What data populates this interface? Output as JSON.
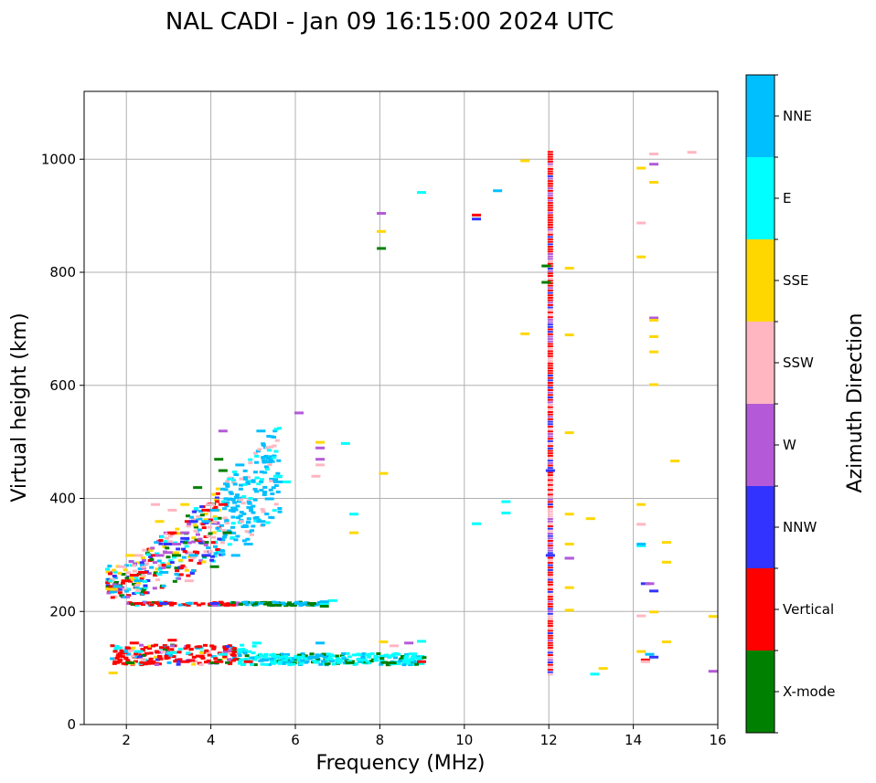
{
  "chart_data": {
    "type": "scatter",
    "title": "NAL CADI - Jan 09 16:15:00 2024 UTC",
    "xlabel": "Frequency (MHz)",
    "ylabel": "Virtual height (km)",
    "xlim": [
      1,
      16
    ],
    "ylim": [
      0,
      1120
    ],
    "xticks": [
      2,
      4,
      6,
      8,
      10,
      12,
      14,
      16
    ],
    "yticks": [
      0,
      200,
      400,
      600,
      800,
      1000
    ],
    "grid": true,
    "colorbar": {
      "label": "Azimuth Direction",
      "categories": [
        {
          "name": "X-mode",
          "color": "#008000"
        },
        {
          "name": "Vertical",
          "color": "#ff0000"
        },
        {
          "name": "NNW",
          "color": "#3333ff"
        },
        {
          "name": "W",
          "color": "#b45ad8"
        },
        {
          "name": "SSW",
          "color": "#ffb6c1"
        },
        {
          "name": "SSE",
          "color": "#ffd700"
        },
        {
          "name": "E",
          "color": "#00ffff"
        },
        {
          "name": "NNE",
          "color": "#00bfff"
        }
      ]
    },
    "series": [
      {
        "name": "X-mode",
        "points": [
          [
            4.1,
            470
          ],
          [
            4.2,
            450
          ],
          [
            3.6,
            420
          ],
          [
            6.6,
            210
          ],
          [
            6.3,
            215
          ],
          [
            5.8,
            213
          ],
          [
            4.0,
            110
          ],
          [
            7.2,
            110
          ],
          [
            8.2,
            110
          ],
          [
            2.0,
            110
          ],
          [
            11.85,
            812
          ],
          [
            11.85,
            783
          ],
          [
            7.95,
            843
          ],
          [
            4.3,
            340
          ],
          [
            4.0,
            280
          ],
          [
            3.1,
            300
          ]
        ]
      },
      {
        "name": "Vertical",
        "points": [
          [
            1.6,
            245
          ],
          [
            1.9,
            255
          ],
          [
            2.1,
            265
          ],
          [
            2.3,
            270
          ],
          [
            2.6,
            300
          ],
          [
            3.0,
            340
          ],
          [
            3.4,
            360
          ],
          [
            3.8,
            380
          ],
          [
            4.2,
            390
          ],
          [
            2.2,
            215
          ],
          [
            3.0,
            215
          ],
          [
            4.0,
            215
          ],
          [
            1.7,
            112
          ],
          [
            2.5,
            112
          ],
          [
            3.3,
            112
          ],
          [
            4.1,
            112
          ],
          [
            4.8,
            112
          ],
          [
            2.1,
            145
          ],
          [
            3.0,
            150
          ],
          [
            10.2,
            902
          ],
          [
            8.9,
            112
          ],
          [
            14.2,
            115
          ]
        ]
      },
      {
        "name": "NNW",
        "points": [
          [
            2.9,
            320
          ],
          [
            3.3,
            330
          ],
          [
            3.8,
            300
          ],
          [
            3.5,
            360
          ],
          [
            2.8,
            215
          ],
          [
            4.0,
            215
          ],
          [
            10.2,
            895
          ],
          [
            12.4,
            295
          ],
          [
            14.2,
            250
          ],
          [
            14.4,
            237
          ],
          [
            14.4,
            120
          ],
          [
            11.95,
            300
          ],
          [
            11.95,
            450
          ]
        ]
      },
      {
        "name": "W",
        "points": [
          [
            2.7,
            300
          ],
          [
            2.9,
            305
          ],
          [
            3.1,
            320
          ],
          [
            3.3,
            340
          ],
          [
            4.2,
            520
          ],
          [
            6.5,
            490
          ],
          [
            6.5,
            470
          ],
          [
            7.95,
            905
          ],
          [
            8.6,
            145
          ],
          [
            12.4,
            295
          ],
          [
            14.3,
            250
          ],
          [
            14.4,
            992
          ],
          [
            14.4,
            720
          ],
          [
            15.8,
            95
          ],
          [
            6.0,
            552
          ]
        ]
      },
      {
        "name": "SSW",
        "points": [
          [
            1.8,
            280
          ],
          [
            2.2,
            300
          ],
          [
            2.6,
            390
          ],
          [
            3.0,
            380
          ],
          [
            3.4,
            255
          ],
          [
            3.9,
            390
          ],
          [
            6.5,
            460
          ],
          [
            6.4,
            440
          ],
          [
            8.25,
            140
          ],
          [
            14.1,
            888
          ],
          [
            14.1,
            355
          ],
          [
            14.1,
            193
          ],
          [
            14.4,
            1010
          ],
          [
            15.3,
            1013
          ],
          [
            14.2,
            112
          ]
        ]
      },
      {
        "name": "SSE",
        "points": [
          [
            1.6,
            240
          ],
          [
            2.0,
            300
          ],
          [
            2.7,
            360
          ],
          [
            3.3,
            390
          ],
          [
            6.5,
            500
          ],
          [
            7.3,
            340
          ],
          [
            8.0,
            445
          ],
          [
            7.95,
            873
          ],
          [
            11.35,
            998
          ],
          [
            11.35,
            692
          ],
          [
            12.4,
            808
          ],
          [
            12.4,
            690
          ],
          [
            12.4,
            517
          ],
          [
            12.4,
            373
          ],
          [
            12.4,
            320
          ],
          [
            12.4,
            243
          ],
          [
            12.4,
            203
          ],
          [
            12.9,
            365
          ],
          [
            13.2,
            100
          ],
          [
            14.1,
            985
          ],
          [
            14.1,
            828
          ],
          [
            14.1,
            390
          ],
          [
            14.1,
            130
          ],
          [
            14.4,
            960
          ],
          [
            14.4,
            716
          ],
          [
            14.4,
            687
          ],
          [
            14.4,
            660
          ],
          [
            14.4,
            602
          ],
          [
            14.4,
            200
          ],
          [
            14.7,
            323
          ],
          [
            14.7,
            288
          ],
          [
            14.7,
            147
          ],
          [
            14.9,
            467
          ],
          [
            15.8,
            192
          ],
          [
            1.6,
            92
          ],
          [
            8.0,
            147
          ]
        ]
      },
      {
        "name": "E",
        "points": [
          [
            2.2,
            130
          ],
          [
            3.0,
            128
          ],
          [
            4.2,
            125
          ],
          [
            5.0,
            145
          ],
          [
            6.0,
            120
          ],
          [
            7.1,
            498
          ],
          [
            7.3,
            373
          ],
          [
            7.5,
            115
          ],
          [
            8.3,
            125
          ],
          [
            8.9,
            148
          ],
          [
            8.9,
            942
          ],
          [
            10.2,
            356
          ],
          [
            10.9,
            395
          ],
          [
            10.9,
            375
          ],
          [
            13.0,
            90
          ],
          [
            14.1,
            317
          ],
          [
            5.5,
            440
          ],
          [
            5.7,
            430
          ],
          [
            6.6,
            215
          ],
          [
            6.8,
            220
          ]
        ]
      },
      {
        "name": "NNE",
        "points": [
          [
            4.5,
            300
          ],
          [
            4.8,
            320
          ],
          [
            5.1,
            360
          ],
          [
            5.3,
            400
          ],
          [
            5.5,
            430
          ],
          [
            5.1,
            520
          ],
          [
            4.6,
            460
          ],
          [
            4.0,
            380
          ],
          [
            3.8,
            360
          ],
          [
            3.5,
            300
          ],
          [
            2.8,
            270
          ],
          [
            2.2,
            255
          ],
          [
            1.7,
            245
          ],
          [
            6.0,
            215
          ],
          [
            6.6,
            218
          ],
          [
            6.5,
            145
          ],
          [
            6.3,
            120
          ],
          [
            10.7,
            945
          ],
          [
            14.1,
            320
          ],
          [
            14.3,
            125
          ]
        ]
      }
    ]
  }
}
